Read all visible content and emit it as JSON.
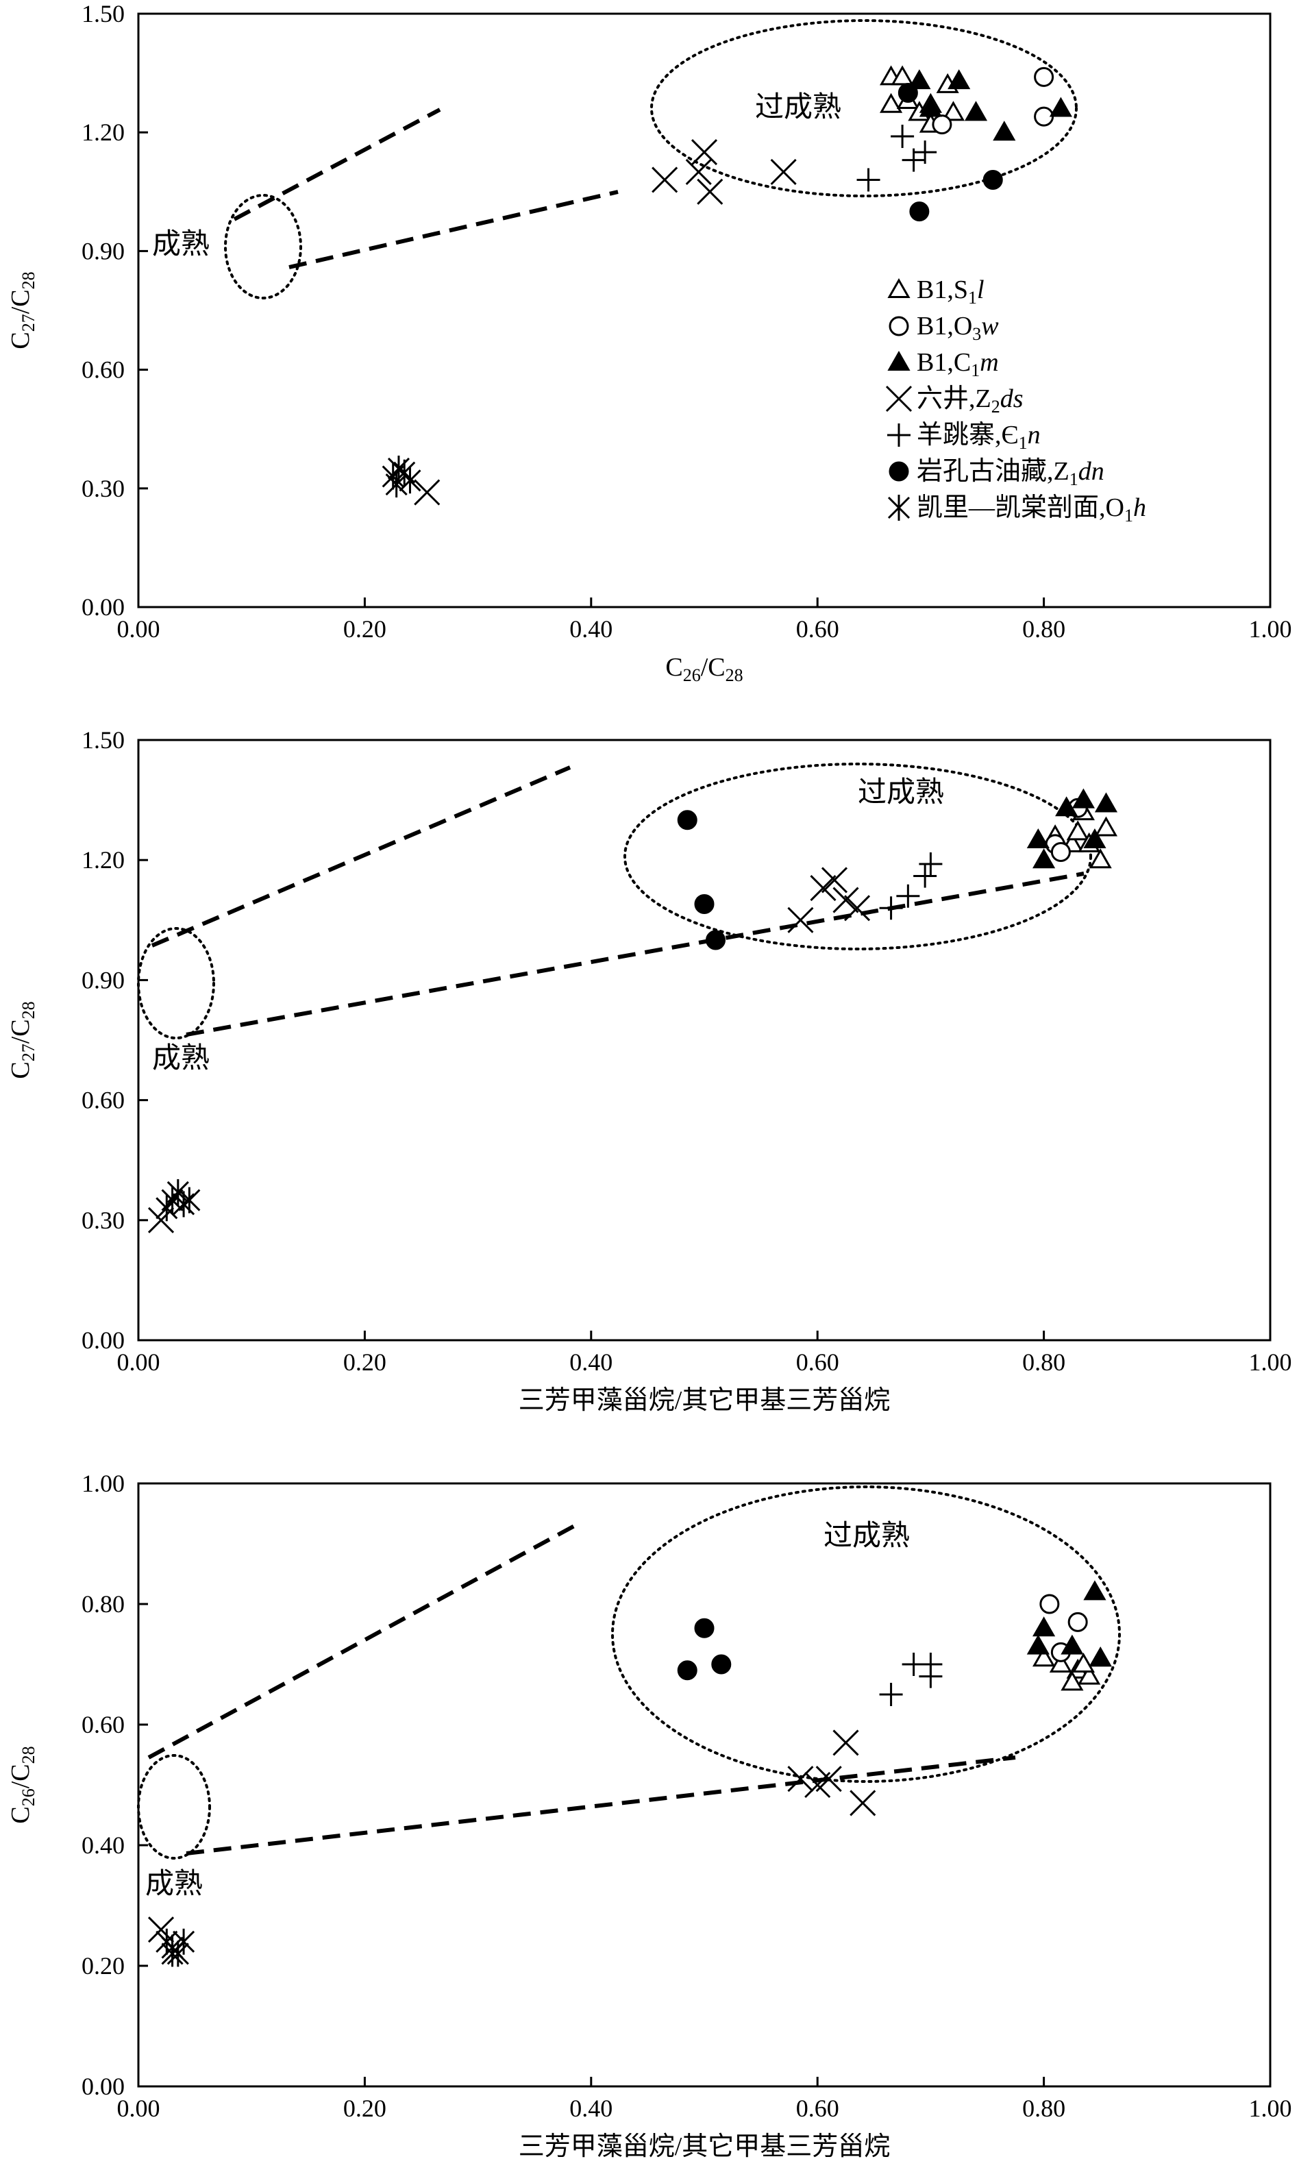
{
  "legend": [
    {
      "key": "b1_s1l",
      "marker": "triangle-open",
      "label": "B1,S",
      "sub": "1",
      "label2": "",
      "italic": "l"
    },
    {
      "key": "b1_o3w",
      "marker": "circle-open",
      "label": "B1,O",
      "sub": "3",
      "label2": "",
      "italic": "w"
    },
    {
      "key": "b1_c1m",
      "marker": "triangle-filled",
      "label": "B1,C",
      "sub": "1",
      "label2": "",
      "italic": "m"
    },
    {
      "key": "liujing",
      "marker": "x",
      "label": "六井,Z",
      "sub": "2",
      "label2": "",
      "italic": "ds"
    },
    {
      "key": "yangtiaozhai",
      "marker": "plus",
      "label": "羊跳寨,Є",
      "sub": "1",
      "label2": "",
      "italic": "n"
    },
    {
      "key": "yankonggu",
      "marker": "circle-filled",
      "label": "岩孔古油藏,Z",
      "sub": "1",
      "label2": "",
      "italic": "dn"
    },
    {
      "key": "kaili",
      "marker": "asterisk",
      "label": "凯里—凯棠剖面,O",
      "sub": "1",
      "label2": "",
      "italic": "h"
    }
  ],
  "chart_data": [
    {
      "type": "scatter",
      "xlabel": "C26/C28",
      "ylabel": "C27/C28",
      "xlim": [
        0,
        1.0
      ],
      "ylim": [
        0,
        1.5
      ],
      "xticks": [
        "0.00",
        "0.20",
        "0.40",
        "0.60",
        "0.80",
        "1.00"
      ],
      "yticks": [
        "0.00",
        "0.30",
        "0.60",
        "0.90",
        "1.20",
        "1.50"
      ],
      "zones": [
        "过成熟",
        "成熟"
      ],
      "series": [
        {
          "name": "b1_s1l",
          "points": [
            [
              0.665,
              1.34
            ],
            [
              0.675,
              1.34
            ],
            [
              0.665,
              1.27
            ],
            [
              0.68,
              1.28
            ],
            [
              0.69,
              1.25
            ],
            [
              0.7,
              1.27
            ],
            [
              0.72,
              1.25
            ],
            [
              0.715,
              1.32
            ],
            [
              0.7,
              1.22
            ]
          ]
        },
        {
          "name": "b1_o3w",
          "points": [
            [
              0.71,
              1.22
            ],
            [
              0.8,
              1.24
            ],
            [
              0.8,
              1.34
            ]
          ]
        },
        {
          "name": "b1_c1m",
          "points": [
            [
              0.69,
              1.33
            ],
            [
              0.725,
              1.33
            ],
            [
              0.74,
              1.25
            ],
            [
              0.765,
              1.2
            ],
            [
              0.815,
              1.26
            ],
            [
              0.7,
              1.26
            ]
          ]
        },
        {
          "name": "liujing",
          "points": [
            [
              0.465,
              1.08
            ],
            [
              0.5,
              1.15
            ],
            [
              0.495,
              1.1
            ],
            [
              0.505,
              1.05
            ],
            [
              0.57,
              1.1
            ],
            [
              0.255,
              0.29
            ]
          ]
        },
        {
          "name": "yangtiaozhai",
          "points": [
            [
              0.645,
              1.08
            ],
            [
              0.675,
              1.19
            ],
            [
              0.695,
              1.15
            ],
            [
              0.685,
              1.13
            ]
          ]
        },
        {
          "name": "yankonggu",
          "points": [
            [
              0.68,
              1.3
            ],
            [
              0.69,
              1.0
            ],
            [
              0.755,
              1.08
            ]
          ]
        },
        {
          "name": "kaili",
          "points": [
            [
              0.225,
              0.33
            ],
            [
              0.23,
              0.35
            ],
            [
              0.235,
              0.34
            ],
            [
              0.24,
              0.32
            ],
            [
              0.228,
              0.31
            ]
          ]
        }
      ]
    },
    {
      "type": "scatter",
      "xlabel": "三芳甲藻甾烷/其它甲基三芳甾烷",
      "ylabel": "C27/C28",
      "xlim": [
        0,
        1.0
      ],
      "ylim": [
        0,
        1.5
      ],
      "xticks": [
        "0.00",
        "0.20",
        "0.40",
        "0.60",
        "0.80",
        "1.00"
      ],
      "yticks": [
        "0.00",
        "0.30",
        "0.60",
        "0.90",
        "1.20",
        "1.50"
      ],
      "zones": [
        "过成熟",
        "成熟"
      ],
      "series": [
        {
          "name": "b1_s1l",
          "points": [
            [
              0.81,
              1.26
            ],
            [
              0.825,
              1.24
            ],
            [
              0.83,
              1.27
            ],
            [
              0.835,
              1.32
            ],
            [
              0.84,
              1.24
            ],
            [
              0.85,
              1.2
            ],
            [
              0.855,
              1.28
            ]
          ]
        },
        {
          "name": "b1_o3w",
          "points": [
            [
              0.81,
              1.24
            ],
            [
              0.815,
              1.22
            ],
            [
              0.83,
              1.33
            ]
          ]
        },
        {
          "name": "b1_c1m",
          "points": [
            [
              0.795,
              1.25
            ],
            [
              0.8,
              1.2
            ],
            [
              0.82,
              1.33
            ],
            [
              0.835,
              1.35
            ],
            [
              0.845,
              1.25
            ],
            [
              0.855,
              1.34
            ]
          ]
        },
        {
          "name": "liujing",
          "points": [
            [
              0.585,
              1.05
            ],
            [
              0.605,
              1.13
            ],
            [
              0.615,
              1.15
            ],
            [
              0.625,
              1.1
            ],
            [
              0.635,
              1.08
            ],
            [
              0.02,
              0.3
            ]
          ]
        },
        {
          "name": "yangtiaozhai",
          "points": [
            [
              0.665,
              1.08
            ],
            [
              0.68,
              1.11
            ],
            [
              0.695,
              1.16
            ],
            [
              0.7,
              1.19
            ]
          ]
        },
        {
          "name": "yankonggu",
          "points": [
            [
              0.485,
              1.3
            ],
            [
              0.5,
              1.09
            ],
            [
              0.51,
              1.0
            ]
          ]
        },
        {
          "name": "kaili",
          "points": [
            [
              0.03,
              0.35
            ],
            [
              0.035,
              0.37
            ],
            [
              0.04,
              0.34
            ],
            [
              0.045,
              0.35
            ],
            [
              0.025,
              0.33
            ]
          ]
        }
      ]
    },
    {
      "type": "scatter",
      "xlabel": "三芳甲藻甾烷/其它甲基三芳甾烷",
      "ylabel": "C26/C28",
      "xlim": [
        0,
        1.0
      ],
      "ylim": [
        0,
        1.0
      ],
      "xticks": [
        "0.00",
        "0.20",
        "0.40",
        "0.60",
        "0.80",
        "1.00"
      ],
      "yticks": [
        "0.00",
        "0.20",
        "0.40",
        "0.60",
        "0.80",
        "1.00"
      ],
      "zones": [
        "过成熟",
        "成熟"
      ],
      "series": [
        {
          "name": "b1_s1l",
          "points": [
            [
              0.8,
              0.71
            ],
            [
              0.815,
              0.7
            ],
            [
              0.83,
              0.69
            ],
            [
              0.84,
              0.68
            ],
            [
              0.835,
              0.7
            ],
            [
              0.85,
              0.71
            ],
            [
              0.825,
              0.67
            ]
          ]
        },
        {
          "name": "b1_o3w",
          "points": [
            [
              0.805,
              0.8
            ],
            [
              0.815,
              0.72
            ],
            [
              0.83,
              0.77
            ]
          ]
        },
        {
          "name": "b1_c1m",
          "points": [
            [
              0.795,
              0.73
            ],
            [
              0.8,
              0.76
            ],
            [
              0.825,
              0.73
            ],
            [
              0.845,
              0.82
            ],
            [
              0.85,
              0.71
            ]
          ]
        },
        {
          "name": "liujing",
          "points": [
            [
              0.585,
              0.51
            ],
            [
              0.6,
              0.5
            ],
            [
              0.61,
              0.51
            ],
            [
              0.625,
              0.57
            ],
            [
              0.64,
              0.47
            ],
            [
              0.02,
              0.26
            ]
          ]
        },
        {
          "name": "yangtiaozhai",
          "points": [
            [
              0.665,
              0.65
            ],
            [
              0.685,
              0.7
            ],
            [
              0.7,
              0.68
            ],
            [
              0.7,
              0.7
            ]
          ]
        },
        {
          "name": "yankonggu",
          "points": [
            [
              0.485,
              0.69
            ],
            [
              0.5,
              0.76
            ],
            [
              0.515,
              0.7
            ]
          ]
        },
        {
          "name": "kaili",
          "points": [
            [
              0.025,
              0.24
            ],
            [
              0.03,
              0.23
            ],
            [
              0.035,
              0.22
            ],
            [
              0.04,
              0.24
            ],
            [
              0.03,
              0.22
            ]
          ]
        }
      ]
    }
  ]
}
